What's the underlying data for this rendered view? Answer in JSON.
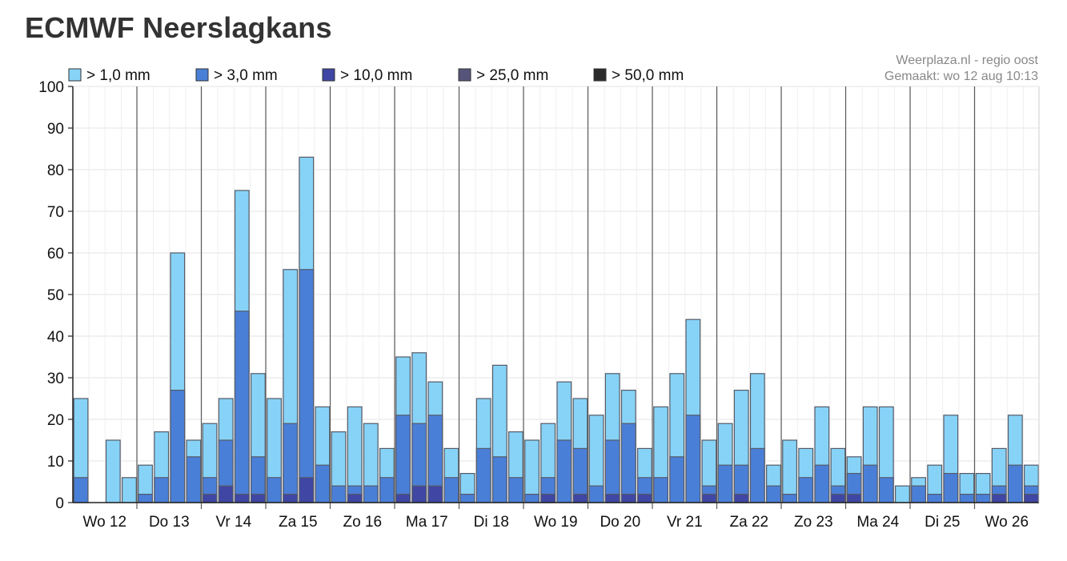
{
  "page": {
    "title": "ECMWF Neerslagkans",
    "source_line1": "Weerplaza.nl - regio oost",
    "source_line2": "Gemaakt: wo 12 aug 10:13"
  },
  "chart_data": {
    "type": "bar",
    "stacked": false,
    "overlapping_bars": true,
    "title": "ECMWF Neerslagkans",
    "xlabel": "",
    "ylabel": "",
    "ylim": [
      0,
      100
    ],
    "yticks": [
      0,
      10,
      20,
      30,
      40,
      50,
      60,
      70,
      80,
      90,
      100
    ],
    "grid": true,
    "legend_position": "top-left",
    "day_labels": [
      "Wo 12",
      "Do 13",
      "Vr 14",
      "Za 15",
      "Zo 16",
      "Ma 17",
      "Di 18",
      "Wo 19",
      "Do 20",
      "Vr 21",
      "Za 22",
      "Zo 23",
      "Ma 24",
      "Di 25",
      "Wo 26"
    ],
    "series": [
      {
        "name": "> 1,0 mm",
        "color": "#87d3f8",
        "values": [
          25,
          0,
          15,
          6,
          9,
          17,
          60,
          15,
          19,
          25,
          75,
          31,
          25,
          56,
          83,
          23,
          17,
          23,
          19,
          13,
          35,
          36,
          29,
          13,
          7,
          25,
          33,
          17,
          15,
          19,
          29,
          25,
          21,
          31,
          27,
          13,
          23,
          31,
          44,
          15,
          19,
          27,
          31,
          9,
          15,
          13,
          23,
          13,
          11,
          23,
          23,
          4,
          6,
          9,
          21,
          7,
          7,
          13,
          21,
          9
        ]
      },
      {
        "name": "> 3,0 mm",
        "color": "#4a7fd8",
        "values": [
          6,
          0,
          0,
          0,
          2,
          6,
          27,
          11,
          6,
          15,
          46,
          11,
          6,
          19,
          56,
          9,
          4,
          4,
          4,
          6,
          21,
          19,
          21,
          6,
          2,
          13,
          11,
          6,
          2,
          6,
          15,
          13,
          4,
          15,
          19,
          6,
          6,
          11,
          21,
          4,
          9,
          9,
          13,
          4,
          2,
          6,
          9,
          4,
          7,
          9,
          6,
          0,
          4,
          2,
          7,
          2,
          2,
          4,
          9,
          4
        ]
      },
      {
        "name": "> 10,0 mm",
        "color": "#3f46a4",
        "values": [
          0,
          0,
          0,
          0,
          0,
          0,
          0,
          0,
          2,
          4,
          2,
          2,
          0,
          2,
          6,
          0,
          0,
          2,
          0,
          0,
          2,
          4,
          4,
          0,
          0,
          0,
          0,
          0,
          0,
          2,
          0,
          2,
          0,
          2,
          2,
          2,
          0,
          0,
          0,
          2,
          0,
          2,
          0,
          0,
          0,
          0,
          0,
          2,
          2,
          0,
          0,
          0,
          0,
          0,
          0,
          0,
          0,
          2,
          0,
          2
        ]
      },
      {
        "name": "> 25,0 mm",
        "color": "#56547a",
        "values": [
          0,
          0,
          0,
          0,
          0,
          0,
          0,
          0,
          0,
          0,
          0,
          0,
          0,
          0,
          0,
          0,
          0,
          0,
          0,
          0,
          0,
          0,
          0,
          0,
          0,
          0,
          0,
          0,
          0,
          0,
          0,
          0,
          0,
          0,
          0,
          0,
          0,
          0,
          0,
          0,
          0,
          0,
          0,
          0,
          0,
          0,
          0,
          0,
          0,
          0,
          0,
          0,
          0,
          0,
          0,
          0,
          0,
          0,
          0,
          0
        ]
      },
      {
        "name": "> 50,0 mm",
        "color": "#2a2a2a",
        "values": [
          0,
          0,
          0,
          0,
          0,
          0,
          0,
          0,
          0,
          0,
          0,
          0,
          0,
          0,
          0,
          0,
          0,
          0,
          0,
          0,
          0,
          0,
          0,
          0,
          0,
          0,
          0,
          0,
          0,
          0,
          0,
          0,
          0,
          0,
          0,
          0,
          0,
          0,
          0,
          0,
          0,
          0,
          0,
          0,
          0,
          0,
          0,
          0,
          0,
          0,
          0,
          0,
          0,
          0,
          0,
          0,
          0,
          0,
          0,
          0
        ]
      }
    ]
  }
}
